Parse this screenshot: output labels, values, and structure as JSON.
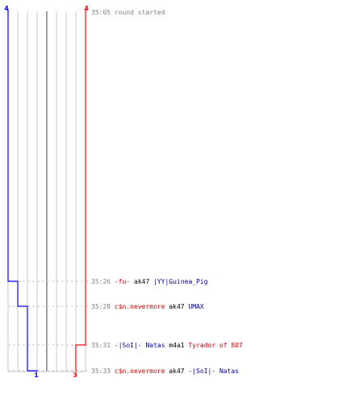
{
  "colors": {
    "team_blue": "#0000ff",
    "team_red": "#ff0000",
    "time": "#808080",
    "grid": "#c8c8c8",
    "grid_center": "#808080",
    "neutral": "#000000",
    "team_blue_text": "#000099",
    "team_red_text": "#cc0000"
  },
  "scores": {
    "blue_start": "4",
    "red_start": "4",
    "blue_end": "1",
    "red_end": "3"
  },
  "events": [
    {
      "time": "35:05",
      "kind": "start",
      "text": "round started"
    },
    {
      "time": "35:26",
      "kind": "kill",
      "killer": "-fu-",
      "killer_team": "red",
      "weapon": "ak47",
      "victim": "|YY|Guinea_Pig",
      "victim_team": "blue"
    },
    {
      "time": "35:28",
      "kind": "kill",
      "killer": "c$n.nevermore",
      "killer_team": "red",
      "weapon": "ak47",
      "victim": "UMAX",
      "victim_team": "blue"
    },
    {
      "time": "35:31",
      "kind": "kill",
      "killer": "-|SoI|- Natas",
      "killer_team": "blue",
      "weapon": "m4a1",
      "victim": "Tyrador of 807",
      "victim_team": "red"
    },
    {
      "time": "35:33",
      "kind": "kill",
      "killer": "c$n.nevermore",
      "killer_team": "red",
      "weapon": "ak47",
      "victim": "-|SoI|- Natas",
      "victim_team": "blue"
    }
  ]
}
